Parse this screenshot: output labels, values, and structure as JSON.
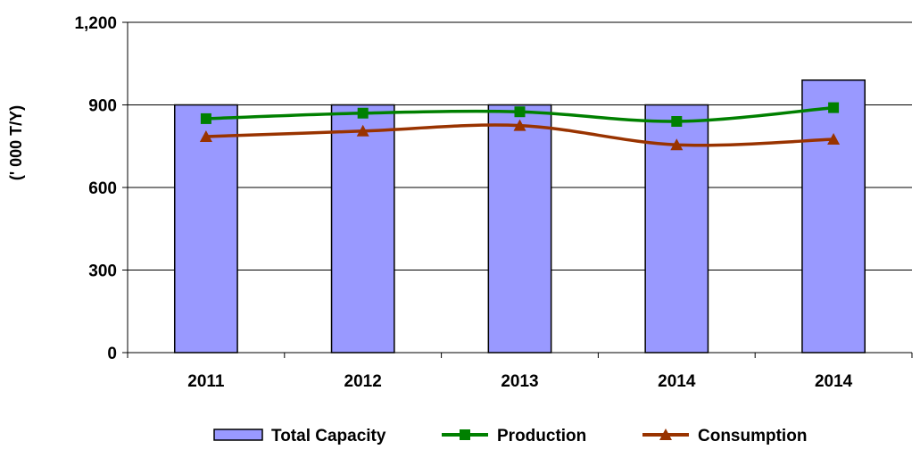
{
  "chart_data": {
    "type": "bar",
    "categories": [
      "2011",
      "2012",
      "2013",
      "2014",
      "2014"
    ],
    "ylabel": "(' 000 T/Y)",
    "ylim": [
      0,
      1200
    ],
    "yticks": [
      0,
      300,
      600,
      900,
      1200
    ],
    "ytick_labels": [
      "0",
      "300",
      "600",
      "900",
      "1,200"
    ],
    "grid": "horizontal",
    "legend_position": "bottom",
    "series": [
      {
        "name": "Total Capacity",
        "kind": "bar",
        "color": "#9999ff",
        "values": [
          900,
          900,
          900,
          900,
          990
        ]
      },
      {
        "name": "Production",
        "kind": "line",
        "marker": "square",
        "color": "#008000",
        "values": [
          850,
          870,
          875,
          840,
          890
        ]
      },
      {
        "name": "Consumption",
        "kind": "line",
        "marker": "triangle",
        "color": "#993300",
        "values": [
          785,
          805,
          825,
          755,
          775
        ]
      }
    ]
  }
}
